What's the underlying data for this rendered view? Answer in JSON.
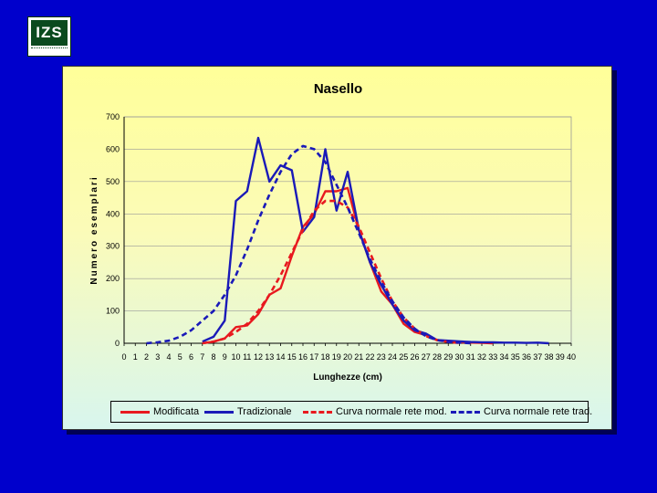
{
  "logo": {
    "text": "IZS"
  },
  "colors": {
    "background": "#0000cc",
    "modificata": "#e8191f",
    "tradizionale": "#1a1ab8"
  },
  "chart_data": {
    "type": "line",
    "title": "Nasello",
    "xlabel": "Lunghezze (cm)",
    "ylabel": "Numero esemplari",
    "xlim": [
      0,
      40
    ],
    "ylim": [
      0,
      700
    ],
    "xticks": [
      0,
      1,
      2,
      3,
      4,
      5,
      6,
      7,
      8,
      9,
      10,
      11,
      12,
      13,
      14,
      15,
      16,
      17,
      18,
      19,
      20,
      21,
      22,
      23,
      24,
      25,
      26,
      27,
      28,
      29,
      30,
      31,
      32,
      33,
      34,
      35,
      36,
      37,
      38,
      39,
      40
    ],
    "yticks": [
      0,
      100,
      200,
      300,
      400,
      500,
      600,
      700
    ],
    "grid": "horizontal",
    "legend_position": "bottom",
    "series": [
      {
        "name": "Modificata",
        "style": "solid",
        "color": "#e8191f",
        "x": [
          7,
          8,
          9,
          10,
          11,
          12,
          13,
          14,
          15,
          16,
          17,
          18,
          19,
          20,
          21,
          22,
          23,
          24,
          25,
          26,
          27,
          28,
          29,
          30,
          31,
          32,
          33
        ],
        "y": [
          0,
          5,
          15,
          50,
          55,
          90,
          150,
          170,
          270,
          360,
          400,
          470,
          470,
          480,
          350,
          250,
          160,
          120,
          60,
          35,
          25,
          10,
          5,
          3,
          2,
          1,
          0
        ]
      },
      {
        "name": "Tradizionale",
        "style": "solid",
        "color": "#1a1ab8",
        "x": [
          7,
          8,
          9,
          10,
          11,
          12,
          13,
          14,
          15,
          16,
          17,
          18,
          19,
          20,
          21,
          22,
          23,
          24,
          25,
          26,
          27,
          28,
          29,
          30,
          31,
          32,
          33,
          34,
          35,
          36,
          37,
          38
        ],
        "y": [
          5,
          20,
          70,
          440,
          470,
          635,
          500,
          550,
          535,
          345,
          390,
          600,
          410,
          530,
          350,
          250,
          180,
          120,
          70,
          40,
          30,
          10,
          8,
          6,
          4,
          3,
          3,
          2,
          2,
          1,
          2,
          0
        ]
      },
      {
        "name": "Curva normale rete mod.",
        "style": "dashed",
        "color": "#e8191f",
        "x": [
          7,
          8,
          9,
          10,
          11,
          12,
          13,
          14,
          15,
          16,
          17,
          18,
          19,
          20,
          21,
          22,
          23,
          24,
          25,
          26,
          27,
          28,
          29,
          30
        ],
        "y": [
          0,
          5,
          15,
          35,
          60,
          100,
          150,
          210,
          280,
          350,
          410,
          440,
          440,
          420,
          360,
          280,
          200,
          130,
          80,
          45,
          22,
          10,
          4,
          1
        ]
      },
      {
        "name": "Curva normale rete trad.",
        "style": "dashed",
        "color": "#1a1ab8",
        "x": [
          2,
          3,
          4,
          5,
          6,
          7,
          8,
          9,
          10,
          11,
          12,
          13,
          14,
          15,
          16,
          17,
          18,
          19,
          20,
          21,
          22,
          23,
          24,
          25,
          26,
          27,
          28,
          29,
          30,
          31
        ],
        "y": [
          0,
          3,
          8,
          20,
          40,
          70,
          100,
          150,
          210,
          290,
          380,
          460,
          530,
          585,
          610,
          600,
          560,
          490,
          420,
          340,
          260,
          190,
          130,
          80,
          45,
          22,
          10,
          4,
          2,
          0
        ]
      }
    ]
  }
}
